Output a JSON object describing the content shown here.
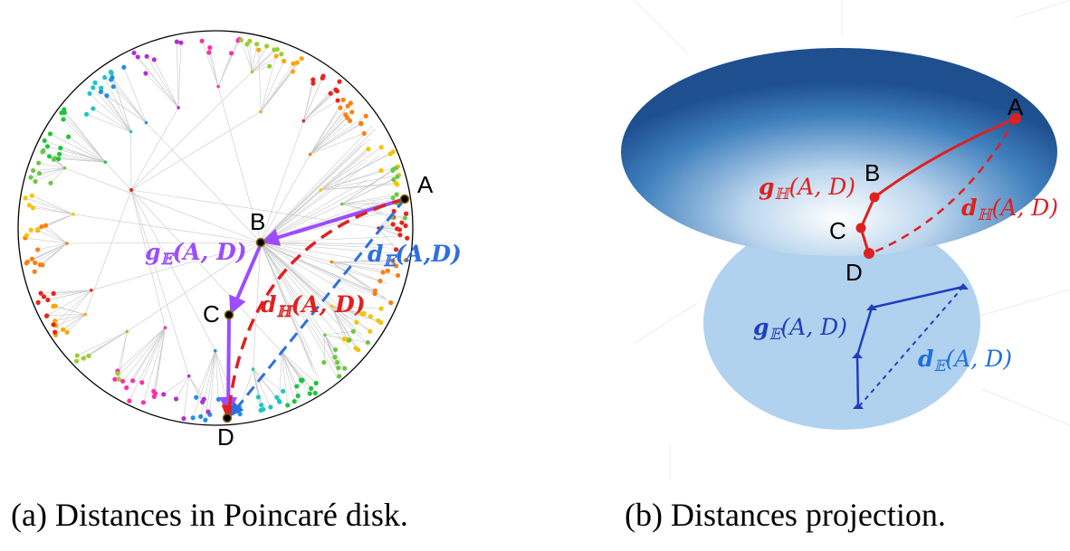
{
  "panel_a": {
    "points": {
      "A": "A",
      "B": "B",
      "C": "C",
      "D": "D"
    },
    "labels": {
      "g_E": {
        "g": "g",
        "sub": "𝔼",
        "args": "(A, D)"
      },
      "d_E": {
        "d": "d",
        "sub": "𝔼",
        "args": "(A,D)"
      },
      "d_H": {
        "d": "d",
        "sub": "ℍ",
        "args": "(A, D)"
      }
    },
    "colors": {
      "purple": "#9b4dff",
      "blue": "#2e6fe0",
      "red": "#e0201f",
      "edges": "#c8c8c8"
    },
    "node_palette": [
      "#e8231a",
      "#ff7f0e",
      "#f5c400",
      "#6cc644",
      "#1ec63a",
      "#20c4c4",
      "#1f8fe6",
      "#b030d0",
      "#ff2fa8",
      "#9acd32",
      "#ffa500"
    ]
  },
  "panel_b": {
    "points": {
      "A": "A",
      "B": "B",
      "C": "C",
      "D": "D"
    },
    "labels": {
      "g_H": {
        "g": "g",
        "sub": "ℍ",
        "args": "(A, D)"
      },
      "d_H": {
        "d": "d",
        "sub": "ℍ",
        "args": "(A, D)"
      },
      "g_E": {
        "g": "g",
        "sub": "𝔼",
        "args": "(A, D)"
      },
      "d_E": {
        "d": "d",
        "sub": "𝔼",
        "args": "(A, D)"
      }
    },
    "colors": {
      "upper_disk": "#2f6fb0",
      "lower_disk": "#a8cdec",
      "red": "#e0201f",
      "blue": "#1f3fbf"
    }
  },
  "captions": {
    "a": "(a) Distances in Poincaré disk.",
    "b": "(b) Distances projection."
  }
}
